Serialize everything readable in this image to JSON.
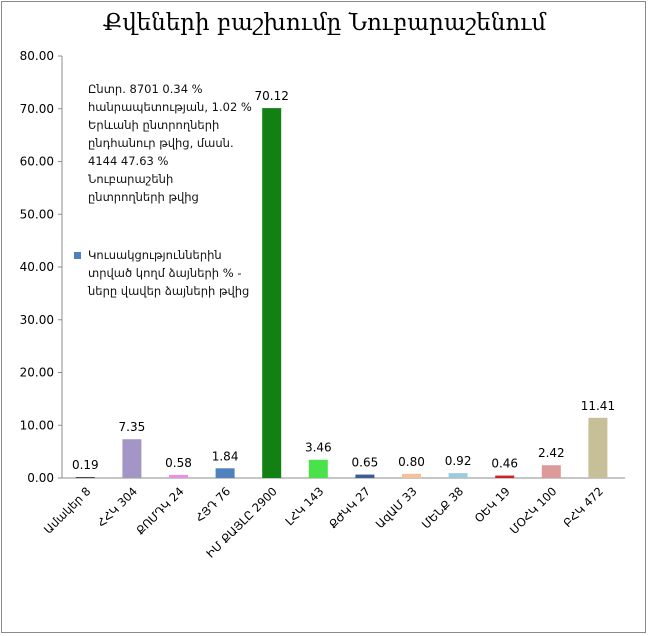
{
  "chart_data": {
    "type": "bar",
    "title": "Քվեների բաշխումը Նուբարաշենում",
    "categories": [
      "Ամակեր 8",
      "ՀՀԿ 304",
      "ՔՈՄԴԿ 24",
      "ՀՅԴ 76",
      "ԻՄ ՔԱՅԼԸ 2900",
      "ԼՀԿ 143",
      "ՔԺԿԿ 27",
      "ԱզԱՄ 33",
      "ՄԵՆՔ 38",
      "ՕԵԿ 19",
      "ՄՕՀԿ 100",
      "ԲՀԿ 472"
    ],
    "values": [
      0.19,
      7.35,
      0.58,
      1.84,
      70.12,
      3.46,
      0.65,
      0.8,
      0.92,
      0.46,
      2.42,
      11.41
    ],
    "value_labels": [
      "0.19",
      "7.35",
      "0.58",
      "1.84",
      "70.12",
      "3.46",
      "0.65",
      "0.80",
      "0.92",
      "0.46",
      "2.42",
      "11.41"
    ],
    "colors": [
      "#4a4a4a",
      "#a395c6",
      "#e98fe6",
      "#4f81bd",
      "#138013",
      "#4be14b",
      "#3a5d95",
      "#f6c09a",
      "#9ccbdc",
      "#cc2228",
      "#dc9a9a",
      "#c6bf98"
    ],
    "ylim": [
      0,
      80
    ],
    "y_ticks": [
      "0.00",
      "10.00",
      "20.00",
      "30.00",
      "40.00",
      "50.00",
      "60.00",
      "70.00",
      "80.00"
    ],
    "grid": false,
    "legend_placement": "left",
    "legend": {
      "color": "#4f81bd",
      "label": "Կուսակցություններին տրված կողմ ձայների % - ները վավեր ձայների թվից"
    },
    "annotation": "Ընտր. 8701 0.34 % հանրապետության, 1.02 % Երևանի ընտրողների ընդհանուր թվից, մասն. 4144 47.63 % Նուբարաշենի ընտրողների թվից"
  }
}
